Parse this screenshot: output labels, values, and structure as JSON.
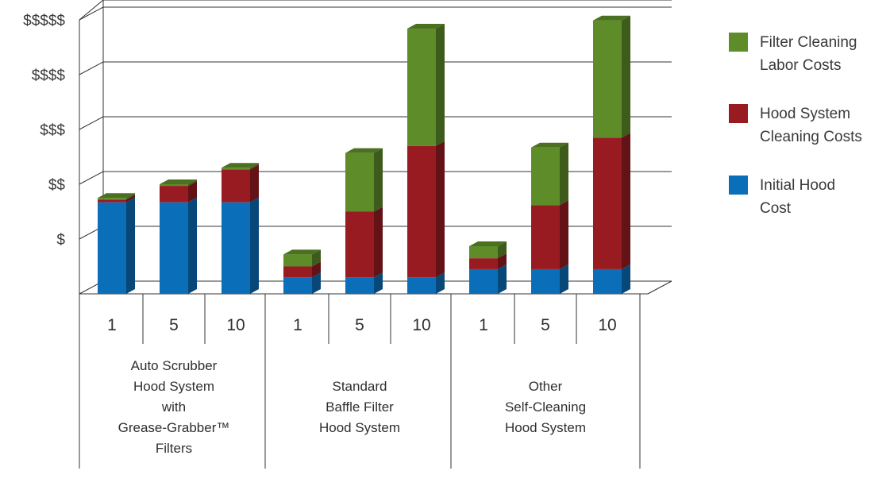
{
  "chart_data": {
    "type": "bar",
    "stacked": true,
    "style": "3d",
    "yticks": [
      "$",
      "$$",
      "$$$",
      "$$$$",
      "$$$$$"
    ],
    "ylim": [
      0,
      5
    ],
    "groups": [
      {
        "label_lines": [
          "Auto Scrubber",
          "Hood System",
          "with",
          "Grease-Grabber™",
          "Filters"
        ],
        "categories": [
          "1",
          "5",
          "10"
        ]
      },
      {
        "label_lines": [
          "Standard",
          "Baffle Filter",
          "Hood System"
        ],
        "categories": [
          "1",
          "5",
          "10"
        ]
      },
      {
        "label_lines": [
          "Other",
          "Self-Cleaning",
          "Hood System"
        ],
        "categories": [
          "1",
          "5",
          "10"
        ]
      }
    ],
    "series": [
      {
        "name": "Initial Hood Cost",
        "color": "#0a6fb8",
        "values": [
          1.67,
          1.67,
          1.67,
          0.3,
          0.3,
          0.3,
          0.45,
          0.45,
          0.45
        ]
      },
      {
        "name": "Hood System Cleaning Costs",
        "color": "#981b22",
        "values": [
          0.05,
          0.3,
          0.6,
          0.2,
          1.2,
          2.4,
          0.2,
          1.17,
          2.4
        ]
      },
      {
        "name": "Filter Cleaning Labor Costs",
        "color": "#5e8c28",
        "values": [
          0.03,
          0.03,
          0.03,
          0.22,
          1.07,
          2.14,
          0.22,
          1.05,
          2.14
        ]
      }
    ],
    "legend": {
      "placement": "right",
      "entries": [
        {
          "lines": [
            "Filter Cleaning",
            "Labor Costs"
          ],
          "color": "#5e8c28"
        },
        {
          "lines": [
            "Hood System",
            "Cleaning Costs"
          ],
          "color": "#981b22"
        },
        {
          "lines": [
            "Initial Hood",
            "Cost"
          ],
          "color": "#0a6fb8"
        }
      ]
    },
    "grid": true
  }
}
